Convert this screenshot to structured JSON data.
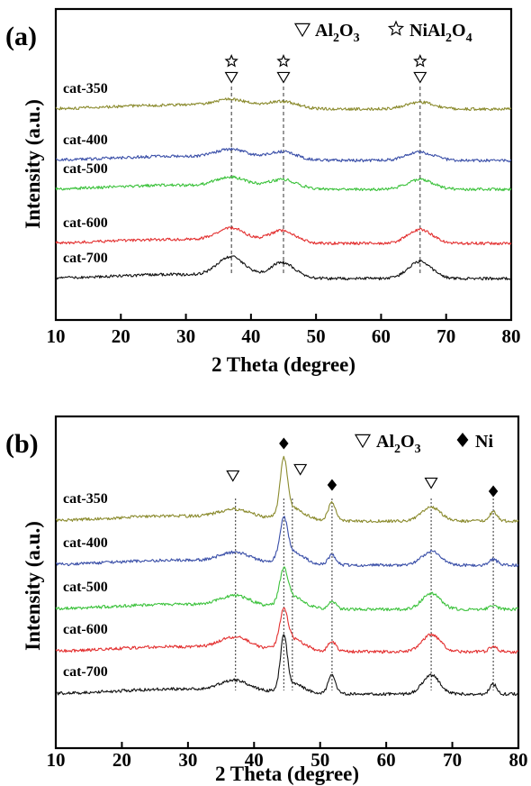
{
  "chart_data": [
    {
      "type": "line",
      "panel_label": "(a)",
      "xlabel": "2 Theta (degree)",
      "ylabel": "Intensity (a.u.)",
      "xlim": [
        10,
        80
      ],
      "x_ticks": [
        10,
        20,
        30,
        40,
        50,
        60,
        70,
        80
      ],
      "legend": [
        {
          "symbol": "triangle-down-open",
          "main": "Al",
          "sub1": "2",
          "mid": "O",
          "sub2": "3",
          "tail": "",
          "sub3": ""
        },
        {
          "symbol": "star-open",
          "main": "NiAl",
          "sub1": "2",
          "mid": "O",
          "sub2": "4",
          "tail": "",
          "sub3": ""
        }
      ],
      "reference_lines": [
        37,
        45,
        66
      ],
      "peak_markers": [
        {
          "x": 37,
          "symbols": [
            "star-open",
            "triangle-down-open"
          ]
        },
        {
          "x": 45,
          "symbols": [
            "star-open",
            "triangle-down-open"
          ]
        },
        {
          "x": 66,
          "symbols": [
            "star-open",
            "triangle-down-open"
          ]
        }
      ],
      "series": [
        {
          "name": "cat-350",
          "color": "#8b8b2e",
          "offset": 4,
          "peaks": [
            {
              "x": 37,
              "h": 0.45,
              "w": 2.6
            },
            {
              "x": 44.8,
              "h": 0.42,
              "w": 2.3
            },
            {
              "x": 66,
              "h": 0.42,
              "w": 2.2
            }
          ]
        },
        {
          "name": "cat-400",
          "color": "#3a4fa8",
          "offset": 3,
          "peaks": [
            {
              "x": 37,
              "h": 0.55,
              "w": 2.4
            },
            {
              "x": 44.8,
              "h": 0.5,
              "w": 2.2
            },
            {
              "x": 66,
              "h": 0.5,
              "w": 2.1
            }
          ]
        },
        {
          "name": "cat-500",
          "color": "#3cc23c",
          "offset": 2,
          "peaks": [
            {
              "x": 37,
              "h": 0.6,
              "w": 2.4
            },
            {
              "x": 44.8,
              "h": 0.55,
              "w": 2.2
            },
            {
              "x": 66,
              "h": 0.6,
              "w": 2.0
            }
          ]
        },
        {
          "name": "cat-600",
          "color": "#e33030",
          "offset": 1,
          "peaks": [
            {
              "x": 37,
              "h": 0.8,
              "w": 2.2
            },
            {
              "x": 44.8,
              "h": 0.75,
              "w": 2.0
            },
            {
              "x": 66,
              "h": 0.85,
              "w": 1.9
            }
          ]
        },
        {
          "name": "cat-700",
          "color": "#111111",
          "offset": 0,
          "peaks": [
            {
              "x": 37,
              "h": 1.2,
              "w": 2.1
            },
            {
              "x": 44.8,
              "h": 0.95,
              "w": 1.9
            },
            {
              "x": 66,
              "h": 1.05,
              "w": 1.8
            }
          ]
        }
      ]
    },
    {
      "type": "line",
      "panel_label": "(b)",
      "xlabel": "2 Theta (degree)",
      "ylabel": "Intensity (a.u.)",
      "xlim": [
        10,
        80
      ],
      "x_ticks": [
        10,
        20,
        30,
        40,
        50,
        60,
        70,
        80
      ],
      "legend": [
        {
          "symbol": "triangle-down-open",
          "main": "Al",
          "sub1": "2",
          "mid": "O",
          "sub2": "3",
          "tail": "",
          "sub3": ""
        },
        {
          "symbol": "diamond-filled",
          "main": "Ni",
          "sub1": "",
          "mid": "",
          "sub2": "",
          "tail": "",
          "sub3": ""
        }
      ],
      "reference_lines": [
        37.2,
        44.5,
        45.8,
        51.8,
        66.8,
        76.2
      ],
      "peak_markers": [
        {
          "x": 36.8,
          "symbols": [
            "triangle-down-open"
          ]
        },
        {
          "x": 44.5,
          "symbols": [
            "diamond-filled"
          ]
        },
        {
          "x": 47.0,
          "symbols": [
            "triangle-down-open"
          ]
        },
        {
          "x": 51.8,
          "symbols": [
            "diamond-filled"
          ]
        },
        {
          "x": 66.8,
          "symbols": [
            "triangle-down-open"
          ]
        },
        {
          "x": 76.2,
          "symbols": [
            "diamond-filled"
          ]
        }
      ],
      "series": [
        {
          "name": "cat-350",
          "color": "#8b8b2e",
          "offset": 4,
          "peaks": [
            {
              "x": 37.2,
              "h": 0.45,
              "w": 2.5
            },
            {
              "x": 44.5,
              "h": 2.7,
              "w": 0.55
            },
            {
              "x": 45.8,
              "h": 0.6,
              "w": 1.8
            },
            {
              "x": 51.8,
              "h": 0.9,
              "w": 0.6
            },
            {
              "x": 66.8,
              "h": 0.7,
              "w": 1.4
            },
            {
              "x": 76.2,
              "h": 0.45,
              "w": 0.6
            }
          ]
        },
        {
          "name": "cat-400",
          "color": "#3a4fa8",
          "offset": 3,
          "peaks": [
            {
              "x": 37.2,
              "h": 0.5,
              "w": 2.4
            },
            {
              "x": 44.5,
              "h": 1.9,
              "w": 0.6
            },
            {
              "x": 45.8,
              "h": 0.6,
              "w": 1.8
            },
            {
              "x": 51.8,
              "h": 0.5,
              "w": 0.6
            },
            {
              "x": 66.8,
              "h": 0.7,
              "w": 1.4
            },
            {
              "x": 76.2,
              "h": 0.3,
              "w": 0.6
            }
          ]
        },
        {
          "name": "cat-500",
          "color": "#3cc23c",
          "offset": 2,
          "peaks": [
            {
              "x": 37.2,
              "h": 0.55,
              "w": 2.4
            },
            {
              "x": 44.5,
              "h": 1.6,
              "w": 0.6
            },
            {
              "x": 45.8,
              "h": 0.6,
              "w": 1.8
            },
            {
              "x": 51.8,
              "h": 0.4,
              "w": 0.6
            },
            {
              "x": 66.8,
              "h": 0.8,
              "w": 1.4
            },
            {
              "x": 76.2,
              "h": 0.2,
              "w": 0.6
            }
          ]
        },
        {
          "name": "cat-600",
          "color": "#e33030",
          "offset": 1,
          "peaks": [
            {
              "x": 37.2,
              "h": 0.6,
              "w": 2.3
            },
            {
              "x": 44.5,
              "h": 1.7,
              "w": 0.6
            },
            {
              "x": 45.8,
              "h": 0.6,
              "w": 1.8
            },
            {
              "x": 51.8,
              "h": 0.5,
              "w": 0.6
            },
            {
              "x": 66.8,
              "h": 0.85,
              "w": 1.4
            },
            {
              "x": 76.2,
              "h": 0.25,
              "w": 0.6
            }
          ]
        },
        {
          "name": "cat-700",
          "color": "#111111",
          "offset": 0,
          "peaks": [
            {
              "x": 37.2,
              "h": 0.55,
              "w": 2.3
            },
            {
              "x": 44.5,
              "h": 2.6,
              "w": 0.5
            },
            {
              "x": 45.8,
              "h": 0.5,
              "w": 1.7
            },
            {
              "x": 51.8,
              "h": 1.0,
              "w": 0.55
            },
            {
              "x": 66.8,
              "h": 0.95,
              "w": 1.3
            },
            {
              "x": 76.2,
              "h": 0.5,
              "w": 0.55
            }
          ]
        }
      ]
    }
  ]
}
